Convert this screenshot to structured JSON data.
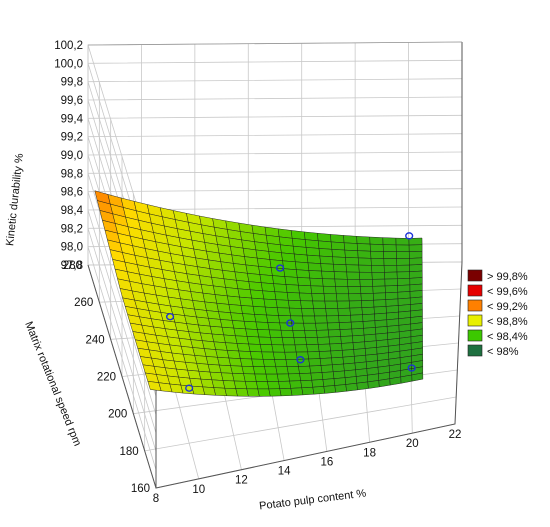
{
  "chart_data": {
    "type": "surface3d",
    "title": "",
    "xlabel": "Potato pulp content %",
    "ylabel": "Matrix rotational speed rpm",
    "zlabel": "Kinetic durability %",
    "x_ticks": [
      "8",
      "10",
      "12",
      "14",
      "16",
      "18",
      "20",
      "22"
    ],
    "y_ticks": [
      "160",
      "180",
      "200",
      "220",
      "240",
      "260",
      "280"
    ],
    "z_ticks": [
      "97,8",
      "98,0",
      "98,2",
      "98,4",
      "98,6",
      "98,8",
      "99,0",
      "99,2",
      "99,4",
      "99,6",
      "99,8",
      "100,0",
      "100,2"
    ],
    "xlim": [
      8,
      22
    ],
    "ylim": [
      160,
      280
    ],
    "zlim": [
      97.8,
      100.2
    ],
    "legend_position": "right",
    "legend": [
      {
        "label": "> 99,8%",
        "color": "#7a0000"
      },
      {
        "label": "< 99,6%",
        "color": "#e60000"
      },
      {
        "label": "< 99,2%",
        "color": "#ff8000"
      },
      {
        "label": "< 98,8%",
        "color": "#e8f000"
      },
      {
        "label": "< 98,4%",
        "color": "#3cc800"
      },
      {
        "label": "< 98%",
        "color": "#1e7040"
      }
    ],
    "design_points": [
      {
        "x": 10,
        "y": 220,
        "z": 98.4
      },
      {
        "x": 15,
        "y": 260,
        "z": 98.1
      },
      {
        "x": 20,
        "y": 260,
        "z": 98.4
      },
      {
        "x": 10,
        "y": 180,
        "z": 98.4
      },
      {
        "x": 15,
        "y": 220,
        "z": 98.2
      },
      {
        "x": 20,
        "y": 180,
        "z": 98.2
      },
      {
        "x": 15,
        "y": 180,
        "z": 98.5
      }
    ],
    "grid": true
  }
}
